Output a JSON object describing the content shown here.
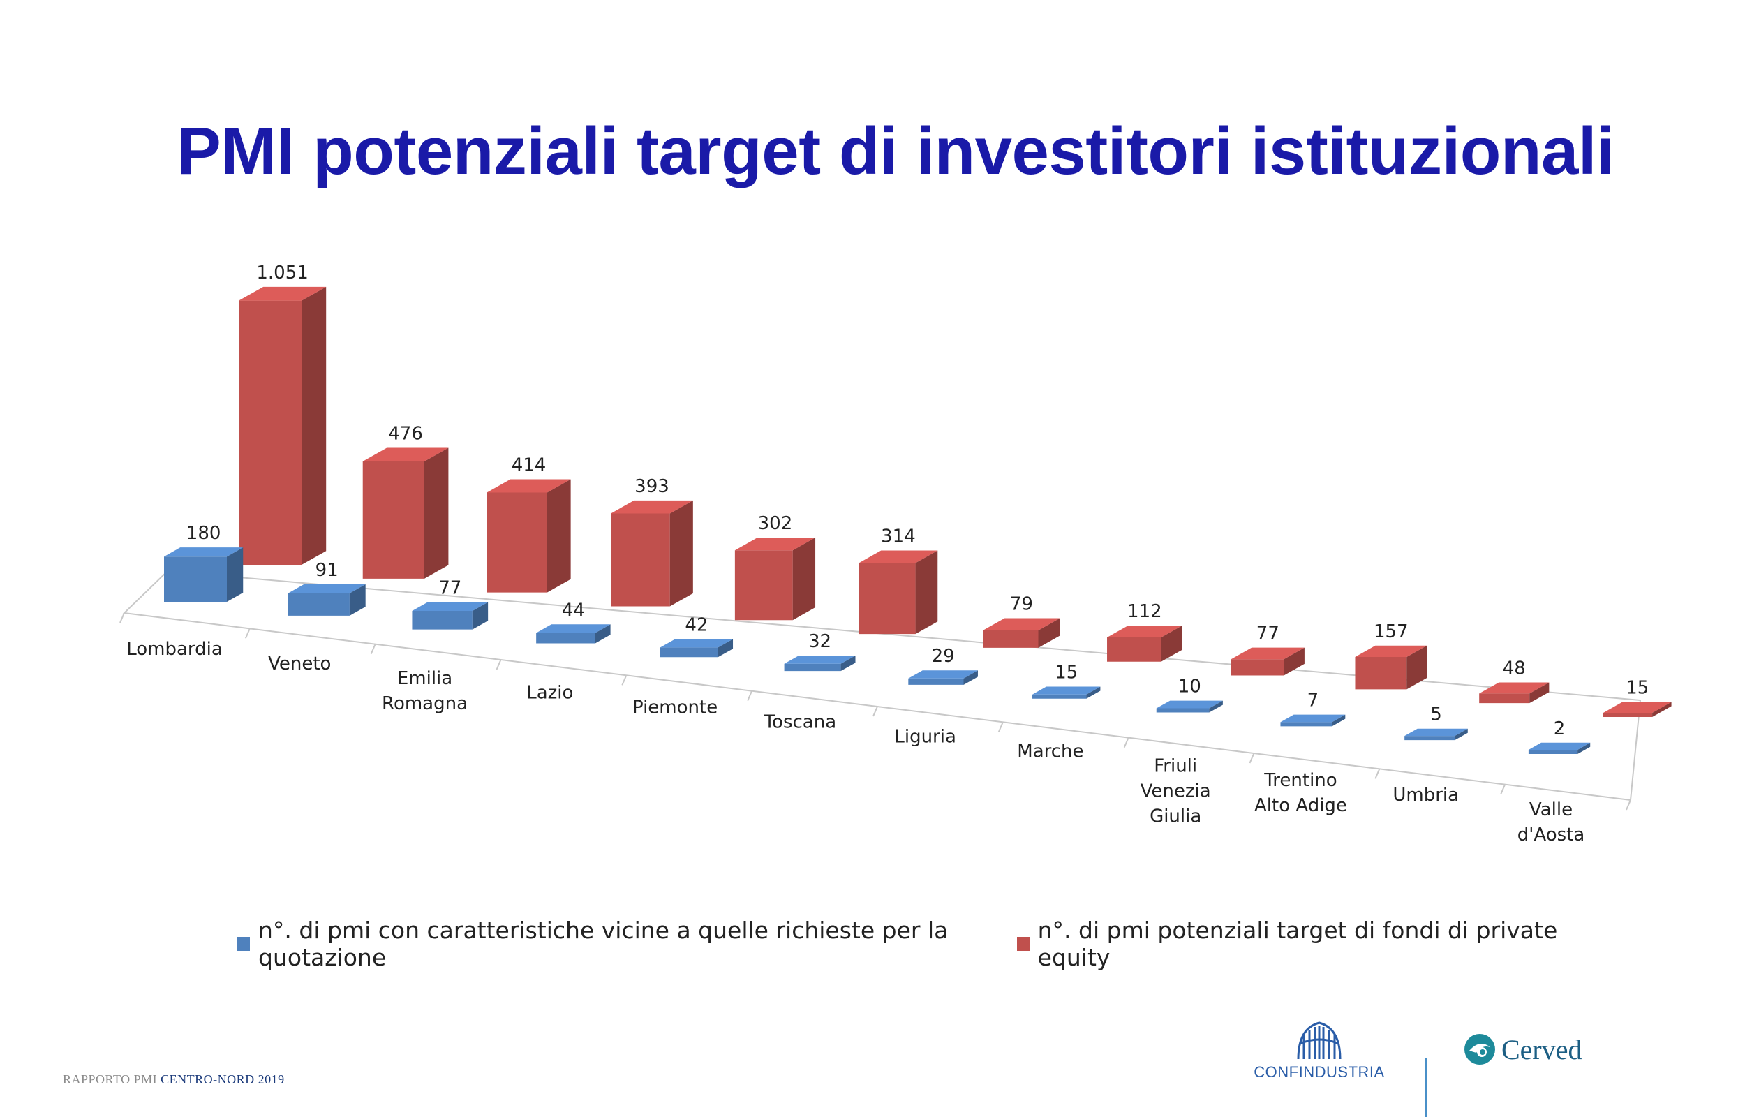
{
  "title": "PMI potenziali target di investitori istituzionali",
  "chart_data": {
    "type": "bar",
    "title": "",
    "xlabel": "",
    "ylabel": "",
    "categories": [
      [
        "Lombardia"
      ],
      [
        "Veneto"
      ],
      [
        "Emilia",
        "Romagna"
      ],
      [
        "Lazio"
      ],
      [
        "Piemonte"
      ],
      [
        "Toscana"
      ],
      [
        "Liguria"
      ],
      [
        "Marche"
      ],
      [
        "Friuli",
        "Venezia",
        "Giulia"
      ],
      [
        "Trentino",
        "Alto Adige"
      ],
      [
        "Umbria"
      ],
      [
        "Valle",
        "d'Aosta"
      ]
    ],
    "series": [
      {
        "name": "n°. di pmi con caratteristiche vicine a quelle richieste per la quotazione",
        "color": "#4f81bd",
        "values": [
          180,
          91,
          77,
          44,
          42,
          32,
          29,
          15,
          10,
          7,
          5,
          2
        ],
        "labels": [
          "180",
          "91",
          "77",
          "44",
          "42",
          "32",
          "29",
          "15",
          "10",
          "7",
          "5",
          "2"
        ]
      },
      {
        "name": "n°. di pmi potenziali target di fondi di private equity",
        "color": "#c0504d",
        "values": [
          1051,
          476,
          414,
          393,
          302,
          314,
          79,
          112,
          77,
          157,
          48,
          15
        ],
        "labels": [
          "1.051",
          "476",
          "414",
          "393",
          "302",
          "314",
          "79",
          "112",
          "77",
          "157",
          "48",
          "15"
        ]
      }
    ],
    "style": "3d-clustered-columns",
    "legend_position": "bottom"
  },
  "footer": {
    "report_prefix": "RAPPORTO PMI",
    "report_strong": "CENTRO-NORD 2019",
    "logo_left": "CONFINDUSTRIA",
    "logo_right": "Cerved"
  }
}
